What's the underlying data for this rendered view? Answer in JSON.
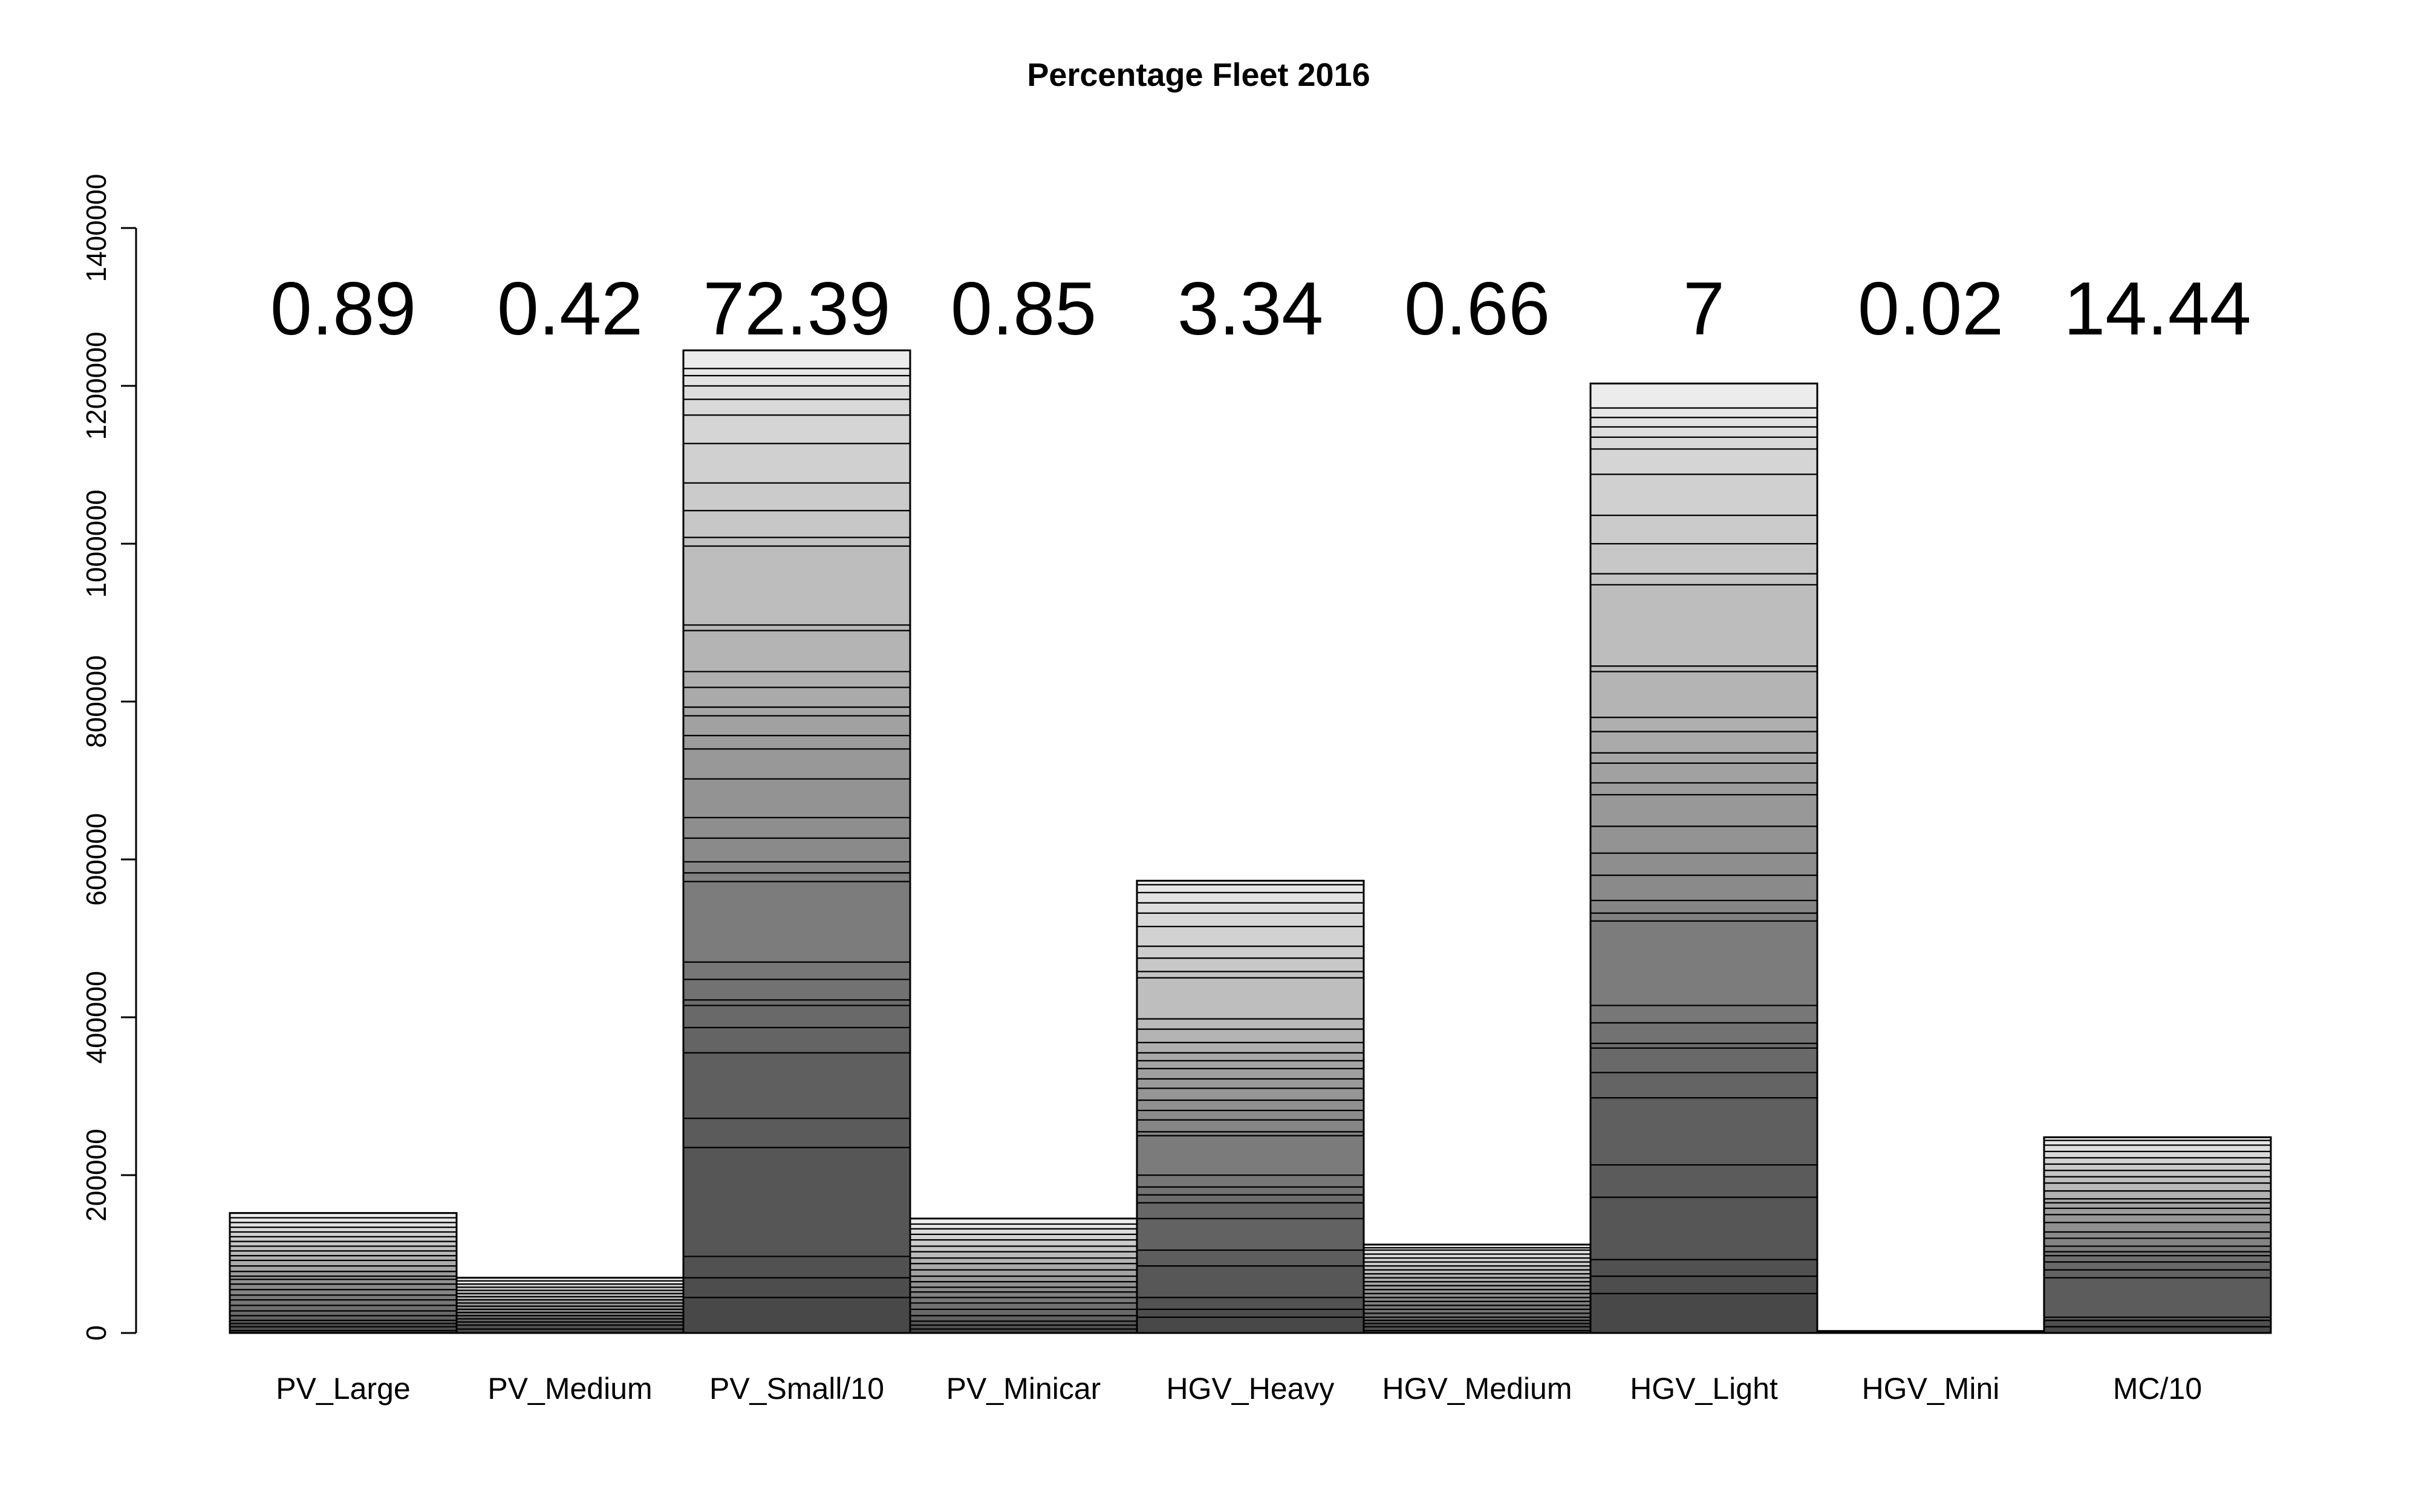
{
  "chart_data": {
    "type": "bar",
    "stacked": true,
    "title": "Percentage Fleet 2016",
    "xlabel": "",
    "ylabel": "",
    "ylim": [
      0,
      1400000
    ],
    "yticks": [
      0,
      200000,
      400000,
      600000,
      800000,
      1000000,
      1200000,
      1400000
    ],
    "ytick_labels": [
      "0",
      "200000",
      "400000",
      "600000",
      "800000",
      "1000000",
      "1200000",
      "1400000"
    ],
    "grid": false,
    "legend": "none",
    "categories": [
      "PV_Large",
      "PV_Medium",
      "PV_Small/10",
      "PV_Minicar",
      "HGV_Heavy",
      "HGV_Medium",
      "HGV_Light",
      "HGV_Mini",
      "MC/10"
    ],
    "totals": [
      152000,
      70000,
      1245000,
      145000,
      573000,
      112000,
      1203000,
      2500,
      248000
    ],
    "percentages": [
      "0.89",
      "0.42",
      "72.39",
      "0.85",
      "3.34",
      "0.66",
      "7",
      "0.02",
      "14.44"
    ],
    "segment_boundaries": [
      [
        3000,
        8000,
        12000,
        16000,
        22000,
        28000,
        35000,
        42000,
        48000,
        55000,
        62000,
        68000,
        72000,
        78000,
        85000,
        92000,
        98000,
        104000,
        110000,
        116000,
        122000,
        128000,
        134000,
        140000,
        146000
      ],
      [
        5000,
        10000,
        14000,
        18000,
        22000,
        26000,
        30000,
        34000,
        38000,
        42000,
        46000,
        50000,
        54000,
        58000,
        62000,
        66000
      ],
      [
        45000,
        70000,
        97000,
        235000,
        272000,
        355000,
        387000,
        415000,
        422000,
        448000,
        470000,
        572000,
        583000,
        597000,
        627000,
        653000,
        702000,
        740000,
        757000,
        782000,
        793000,
        818000,
        838000,
        890000,
        897000,
        997000,
        1008000,
        1042000,
        1077000,
        1127000,
        1163000,
        1183000,
        1200000,
        1213000,
        1222000
      ],
      [
        5000,
        10000,
        15000,
        22000,
        30000,
        38000,
        45000,
        52000,
        58000,
        65000,
        72000,
        80000,
        88000,
        95000,
        103000,
        110000,
        118000,
        125000,
        132000,
        138000
      ],
      [
        20000,
        30000,
        45000,
        85000,
        105000,
        145000,
        165000,
        175000,
        185000,
        200000,
        250000,
        255000,
        270000,
        282000,
        295000,
        310000,
        322000,
        335000,
        345000,
        355000,
        368000,
        385000,
        398000,
        450000,
        458000,
        475000,
        490000,
        515000,
        532000,
        545000,
        558000,
        568000
      ],
      [
        3000,
        8000,
        12000,
        16000,
        20000,
        25000,
        30000,
        35000,
        40000,
        45000,
        50000,
        55000,
        60000,
        65000,
        70000,
        75000,
        80000,
        85000,
        90000,
        95000,
        100000,
        105000,
        108000
      ],
      [
        50000,
        72000,
        93000,
        172000,
        213000,
        298000,
        330000,
        361000,
        367000,
        393000,
        415000,
        522000,
        532000,
        548000,
        580000,
        608000,
        642000,
        682000,
        697000,
        722000,
        735000,
        762000,
        780000,
        838000,
        845000,
        948000,
        962000,
        1000000,
        1036000,
        1088000,
        1120000,
        1135000,
        1148000,
        1160000,
        1172000
      ],
      [
        1000
      ],
      [
        8000,
        16000,
        20000,
        70000,
        80000,
        90000,
        98000,
        103000,
        110000,
        120000,
        128000,
        140000,
        150000,
        158000,
        165000,
        170000,
        180000,
        190000,
        198000,
        206000,
        214000,
        222000,
        230000,
        238000,
        244000
      ]
    ]
  }
}
